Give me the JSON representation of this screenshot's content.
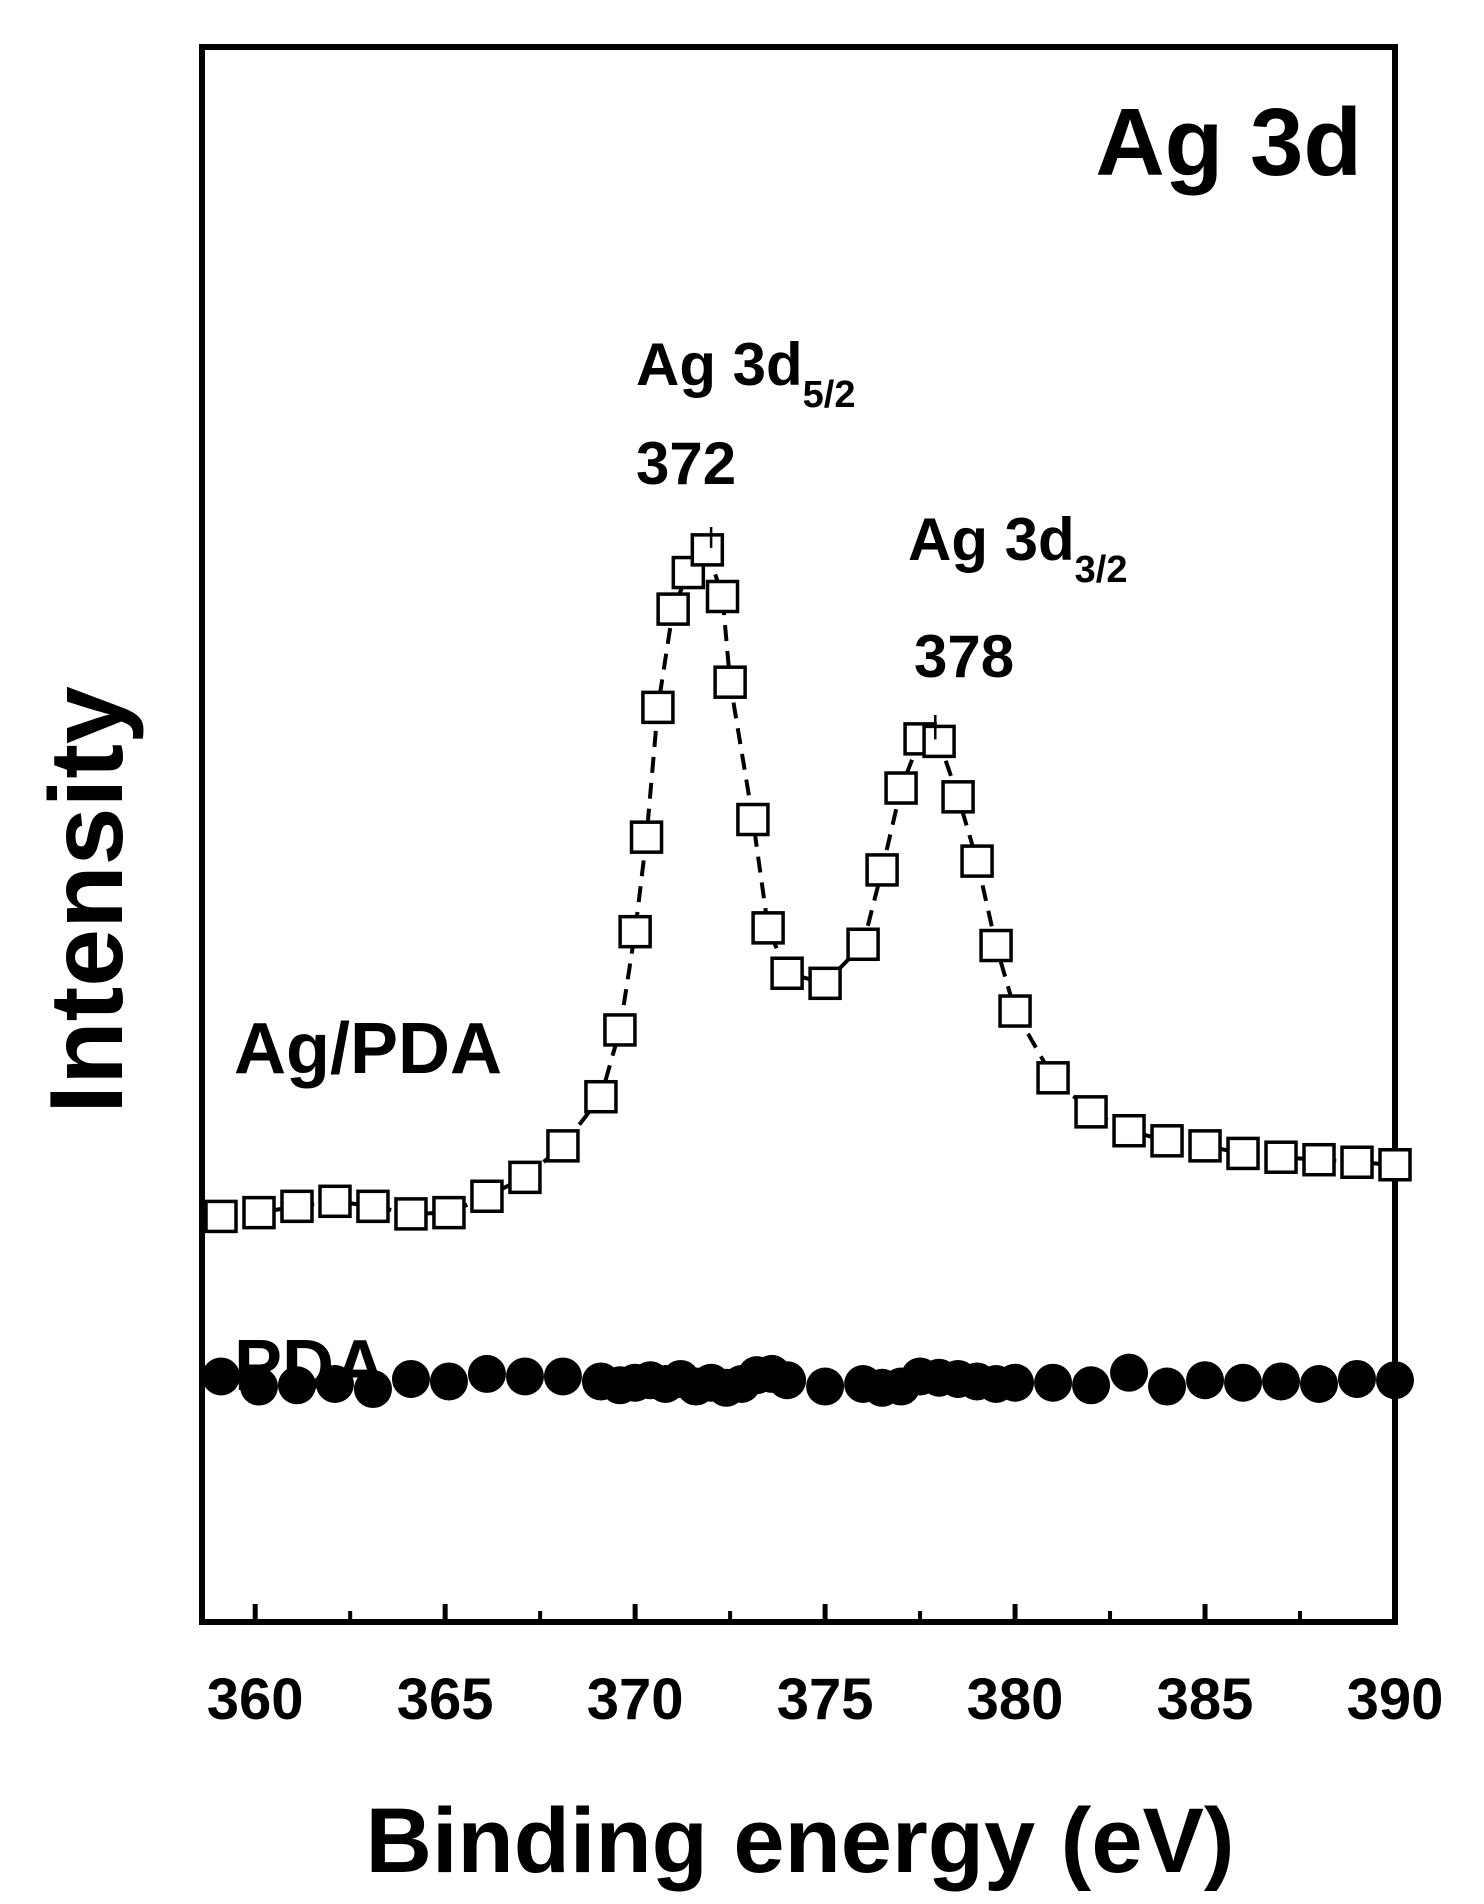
{
  "chart_data": {
    "type": "scatter",
    "title": "Ag 3d",
    "xlabel": "Binding energy (eV)",
    "ylabel": "Intensity",
    "xlim": [
      358.6,
      390
    ],
    "ylim": [
      0,
      100
    ],
    "grid": false,
    "legend": "none",
    "x_ticks": [
      360,
      365,
      370,
      375,
      380,
      385,
      390
    ],
    "series": [
      {
        "name": "Ag/PDA",
        "marker": "open-square",
        "connector": "dashed",
        "color": "#000000",
        "x": [
          359.1,
          360.1,
          361.1,
          362.1,
          363.1,
          364.1,
          365.1,
          366.1,
          367.1,
          368.1,
          369.1,
          369.6,
          370.0,
          370.3,
          370.6,
          371.0,
          371.4,
          371.9,
          372.3,
          372.5,
          373.1,
          373.5,
          374.0,
          375.0,
          376.0,
          376.5,
          377.0,
          377.5,
          378.0,
          378.5,
          379.0,
          379.5,
          380.0,
          381.0,
          382.0,
          383.0,
          384.0,
          385.0,
          386.0,
          387.0,
          388.0,
          389.0,
          390.0
        ],
        "y": [
          23.3,
          23.6,
          24.1,
          24.5,
          24.1,
          23.5,
          23.6,
          24.9,
          26.4,
          28.9,
          32.8,
          38.1,
          45.9,
          53.4,
          63.7,
          71.5,
          74.4,
          76.2,
          72.5,
          65.7,
          54.8,
          46.2,
          42.6,
          41.8,
          44.9,
          50.8,
          57.3,
          61.2,
          61.0,
          56.6,
          51.5,
          44.8,
          39.6,
          34.3,
          31.6,
          30.1,
          29.3,
          28.9,
          28.3,
          28.0,
          27.8,
          27.6,
          27.4
        ]
      },
      {
        "name": "PDA",
        "marker": "filled-circle",
        "connector": "none",
        "color": "#000000",
        "x": [
          359.1,
          360.1,
          361.1,
          362.1,
          363.1,
          364.1,
          365.1,
          366.1,
          367.1,
          368.1,
          369.1,
          369.6,
          370.0,
          370.4,
          370.8,
          371.2,
          371.6,
          372.0,
          372.4,
          372.8,
          373.2,
          373.6,
          374.0,
          375.0,
          376.0,
          376.5,
          377.0,
          377.5,
          378.0,
          378.5,
          379.0,
          379.5,
          380.0,
          381.0,
          382.0,
          383.0,
          384.0,
          385.0,
          386.0,
          387.0,
          388.0,
          389.0,
          390.0
        ],
        "y": [
          10.6,
          9.8,
          9.9,
          10.0,
          9.6,
          10.4,
          10.2,
          10.8,
          10.6,
          10.6,
          10.2,
          9.9,
          10.1,
          10.3,
          10.0,
          10.4,
          9.8,
          10.1,
          9.7,
          10.0,
          10.7,
          10.8,
          10.3,
          9.8,
          10.0,
          9.7,
          9.8,
          10.6,
          10.5,
          10.4,
          10.2,
          10.0,
          10.1,
          10.1,
          9.9,
          10.9,
          9.8,
          10.3,
          10.1,
          10.2,
          10.0,
          10.4,
          10.3
        ]
      }
    ],
    "annotations": [
      {
        "label": "Ag 3d",
        "sub": "5/2",
        "value": "372",
        "x": 372.0
      },
      {
        "label": "Ag 3d",
        "sub": "3/2",
        "value": "378",
        "x": 377.9
      }
    ],
    "series_labels": [
      "Ag/PDA",
      "PDA"
    ]
  }
}
